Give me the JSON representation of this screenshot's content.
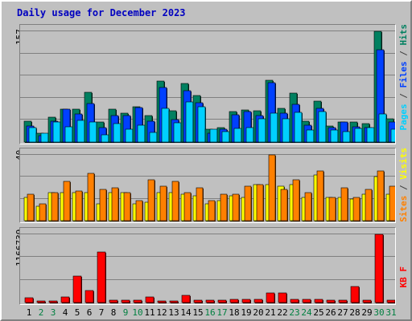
{
  "chart_data": {
    "type": "bar",
    "title": "Daily usage for December 2023",
    "categories": [
      "1",
      "2",
      "3",
      "4",
      "5",
      "6",
      "7",
      "8",
      "9",
      "10",
      "11",
      "12",
      "13",
      "14",
      "15",
      "16",
      "17",
      "18",
      "19",
      "20",
      "21",
      "22",
      "23",
      "24",
      "25",
      "26",
      "27",
      "28",
      "29",
      "30",
      "31"
    ],
    "weekend_days": [
      "2",
      "3",
      "9",
      "10",
      "16",
      "17",
      "23",
      "24",
      "30",
      "31"
    ],
    "panels": [
      {
        "name": "hits",
        "ymax_label": "157",
        "ylim": [
          0,
          157
        ],
        "series_label_parts": [
          {
            "text": "Pages",
            "color": "#00d0ff"
          },
          {
            "text": " / ",
            "color": "#404040"
          },
          {
            "text": "Files",
            "color": "#0040ff"
          },
          {
            "text": " / ",
            "color": "#404040"
          },
          {
            "text": "Hits",
            "color": "#008060"
          }
        ],
        "series": [
          {
            "name": "Hits",
            "color": "#008060",
            "values": [
              30,
              12,
              35,
              47,
              47,
              70,
              28,
              47,
              41,
              50,
              38,
              86,
              44,
              83,
              66,
              18,
              21,
              43,
              46,
              44,
              88,
              48,
              69,
              30,
              58,
              23,
              28,
              28,
              26,
              157,
              33
            ]
          },
          {
            "name": "Files",
            "color": "#0040ff",
            "values": [
              23,
              9,
              30,
              47,
              40,
              55,
              20,
              38,
              37,
              49,
              30,
              77,
              32,
              73,
              56,
              13,
              18,
              39,
              43,
              38,
              84,
              41,
              53,
              24,
              48,
              20,
              29,
              22,
              20,
              131,
              28
            ]
          },
          {
            "name": "Pages",
            "color": "#00d0ff",
            "values": [
              20,
              13,
              28,
              22,
              31,
              29,
              10,
              26,
              18,
              24,
              14,
              48,
              27,
              57,
              50,
              18,
              15,
              19,
              21,
              33,
              41,
              33,
              42,
              17,
              43,
              17,
              15,
              19,
              20,
              40,
              18
            ]
          }
        ]
      },
      {
        "name": "sites_visits",
        "ymax_label": "40",
        "ylim": [
          0,
          40
        ],
        "series_label_parts": [
          {
            "text": "Sites",
            "color": "#ff8000"
          },
          {
            "text": " / ",
            "color": "#404040"
          },
          {
            "text": "Visits",
            "color": "#ffff00"
          }
        ],
        "series": [
          {
            "name": "Visits",
            "color": "#ffff00",
            "values": [
              14,
              9,
              17,
              17,
              17,
              17,
              10,
              17,
              17,
              10,
              11,
              17,
              17,
              16,
              15,
              10,
              12,
              15,
              14,
              22,
              22,
              21,
              22,
              14,
              28,
              14,
              14,
              13,
              16,
              27,
              16
            ]
          },
          {
            "name": "Sites",
            "color": "#ff8000",
            "values": [
              16,
              10,
              17,
              24,
              18,
              29,
              19,
              20,
              17,
              12,
              25,
              21,
              24,
              17,
              20,
              12,
              16,
              16,
              21,
              22,
              40,
              19,
              25,
              17,
              30,
              14,
              20,
              14,
              19,
              30,
              21
            ]
          }
        ]
      },
      {
        "name": "kbf",
        "ymax_label": "1166739",
        "ylim": [
          0,
          1166739
        ],
        "series_label_parts": [
          {
            "text": "KB F",
            "color": "#ff0000"
          }
        ],
        "series": [
          {
            "name": "KB F",
            "color": "#ff0000",
            "values": [
              80000,
              30000,
              30000,
              100000,
              450000,
              210000,
              860000,
              40000,
              40000,
              40000,
              90000,
              30000,
              30000,
              130000,
              40000,
              40000,
              40000,
              50000,
              60000,
              50000,
              170000,
              170000,
              50000,
              50000,
              50000,
              40000,
              40000,
              280000,
              40000,
              1166739,
              40000
            ]
          }
        ]
      }
    ],
    "colors": {
      "background": "#c0c0c0",
      "title": "#0000c0",
      "weekday_tick": "#000000",
      "weekend_tick": "#008040"
    }
  }
}
